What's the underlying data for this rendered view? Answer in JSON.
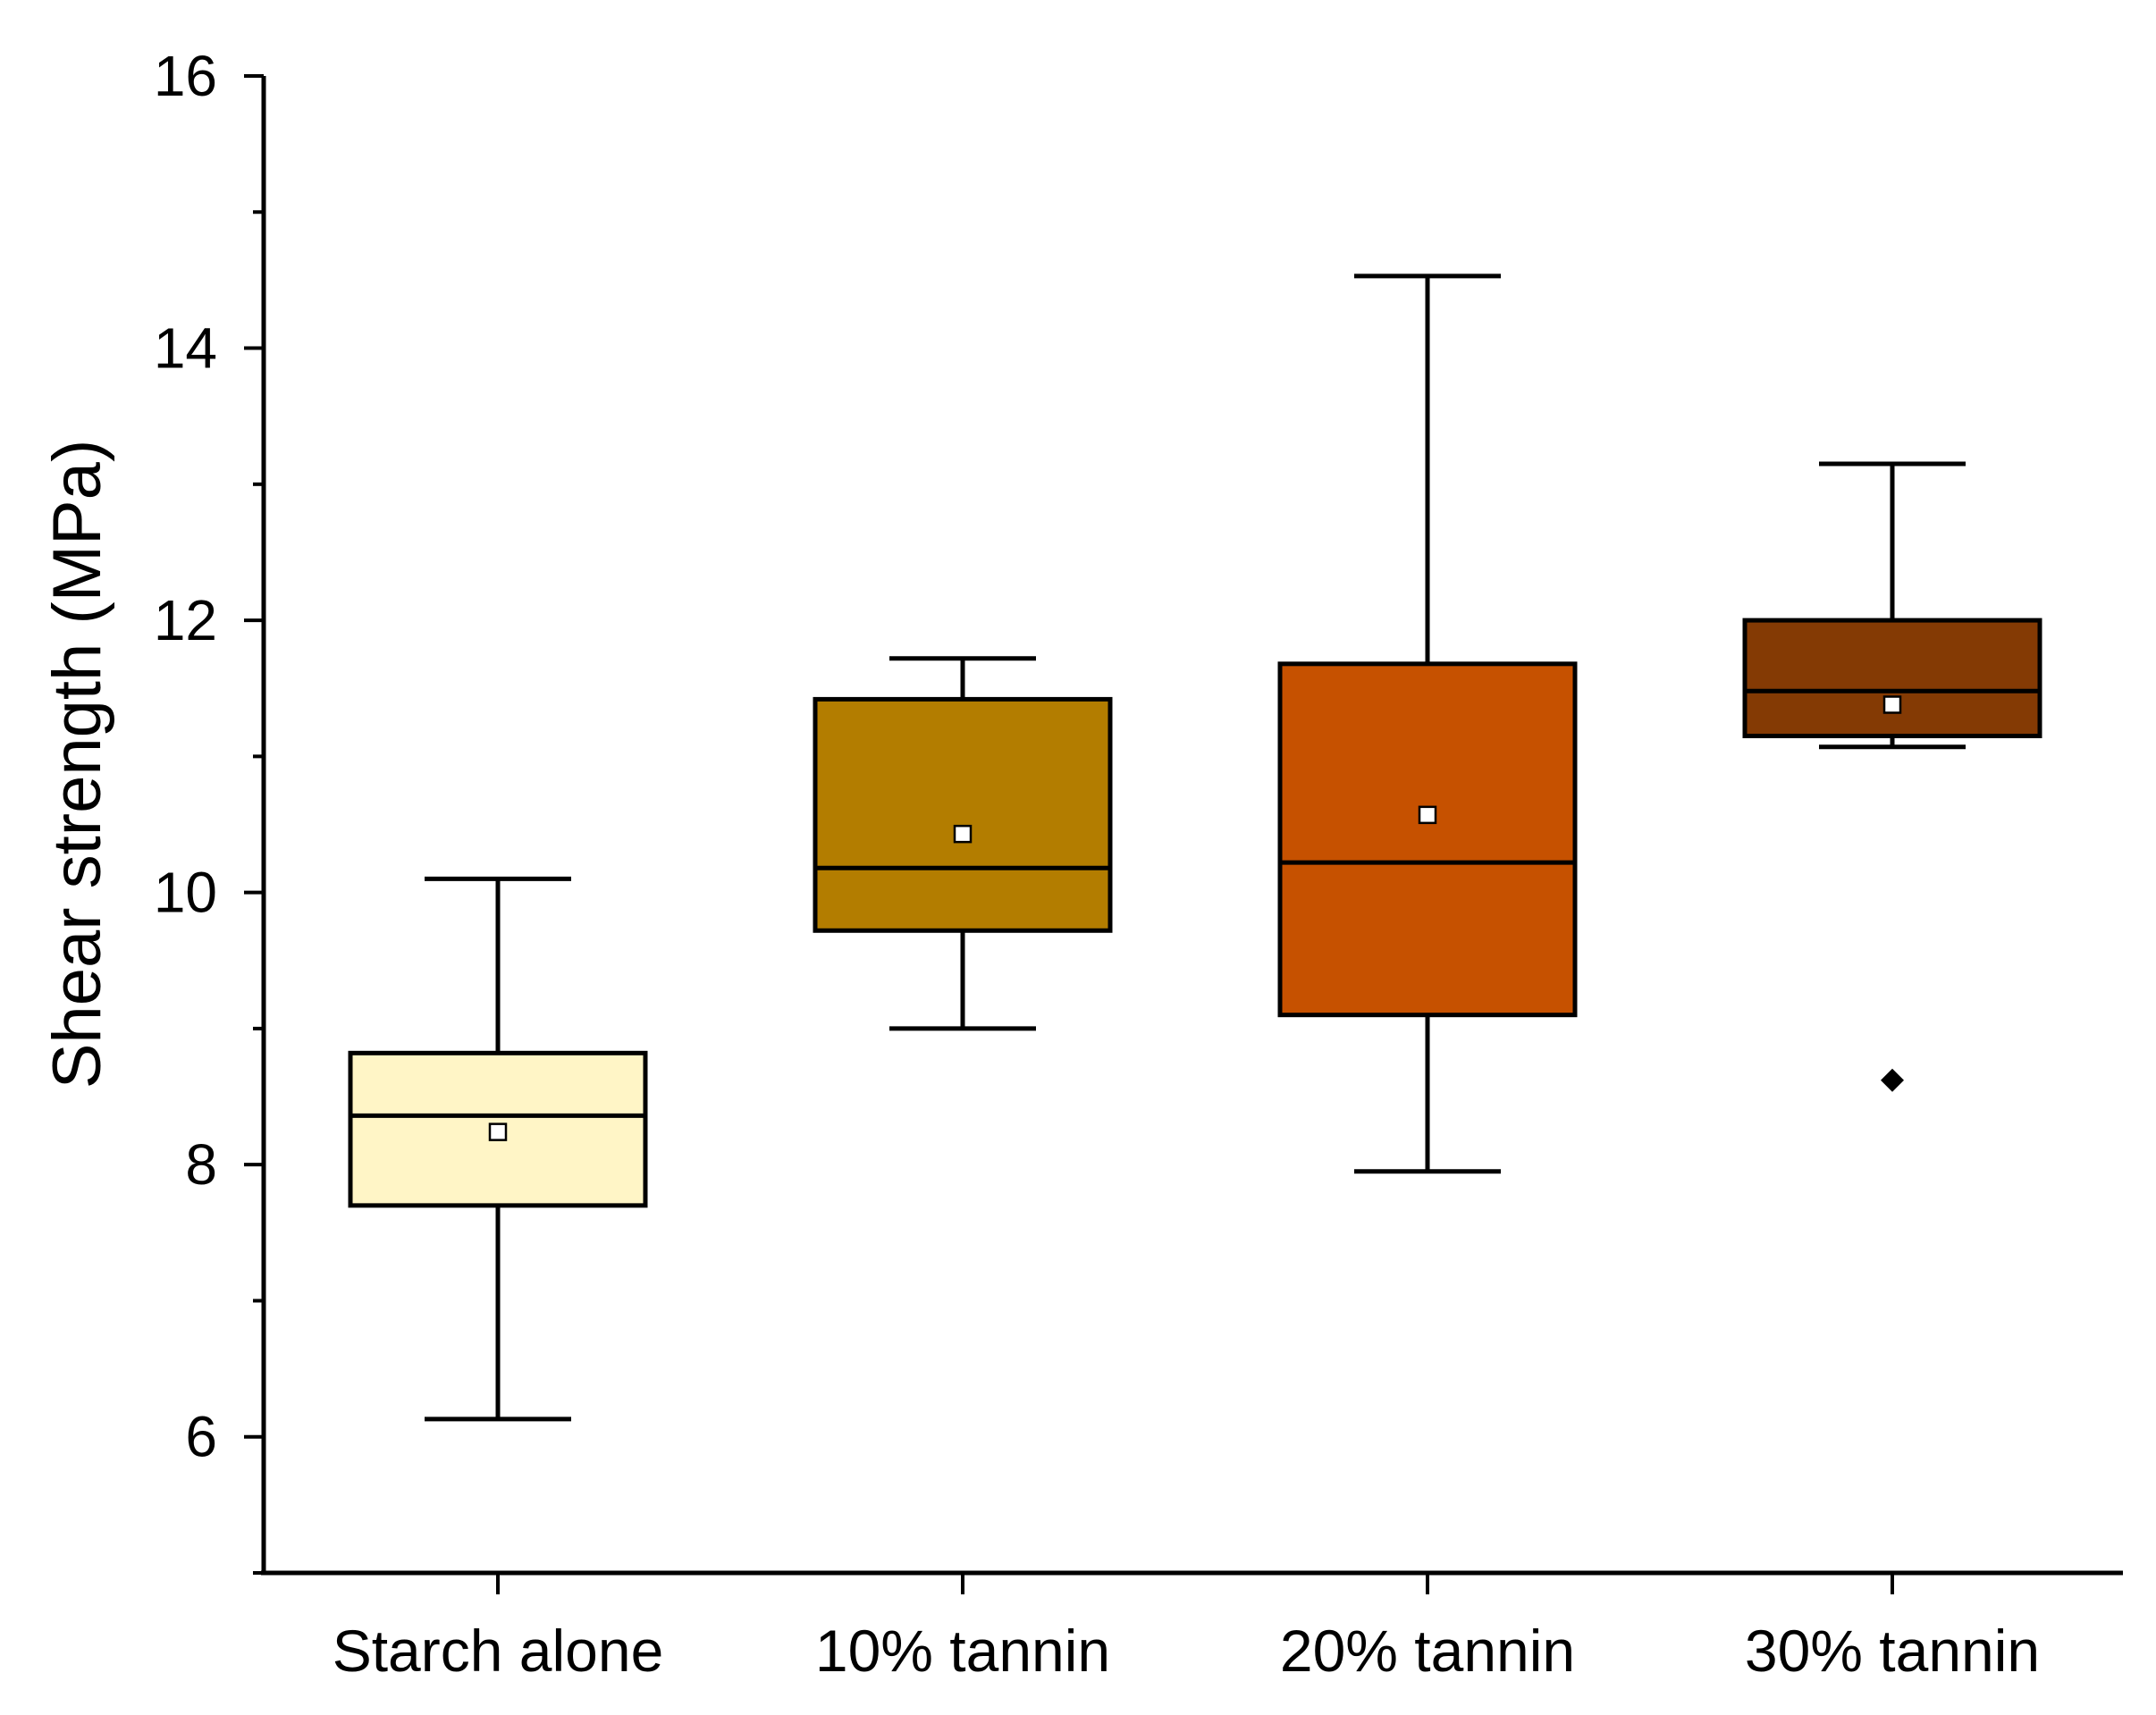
{
  "chart_data": {
    "type": "box",
    "title": "",
    "xlabel": "",
    "ylabel": "Shear strength (MPa)",
    "ylim": [
      5,
      16
    ],
    "yticks_major": [
      6,
      8,
      10,
      12,
      14,
      16
    ],
    "yticks_minor": [
      5,
      7,
      9,
      11,
      13,
      15
    ],
    "categories": [
      "Starch alone",
      "10% tannin",
      "20% tannin",
      "30% tannin"
    ],
    "series": [
      {
        "name": "Starch alone",
        "color": "#FFF5C6",
        "whisker_low": 6.13,
        "q1": 7.7,
        "median": 8.36,
        "q3": 8.82,
        "whisker_high": 10.1,
        "mean": 8.24,
        "outliers": []
      },
      {
        "name": "10% tannin",
        "color": "#B37D00",
        "whisker_low": 9.0,
        "q1": 9.72,
        "median": 10.18,
        "q3": 11.42,
        "whisker_high": 11.72,
        "mean": 10.43,
        "outliers": []
      },
      {
        "name": "20% tannin",
        "color": "#C65100",
        "whisker_low": 7.95,
        "q1": 9.1,
        "median": 10.22,
        "q3": 11.68,
        "whisker_high": 14.53,
        "mean": 10.57,
        "outliers": []
      },
      {
        "name": "30% tannin",
        "color": "#843A04",
        "whisker_low": 11.07,
        "q1": 11.15,
        "median": 11.48,
        "q3": 12.0,
        "whisker_high": 13.15,
        "mean": 11.38,
        "outliers": [
          8.62
        ]
      }
    ]
  }
}
